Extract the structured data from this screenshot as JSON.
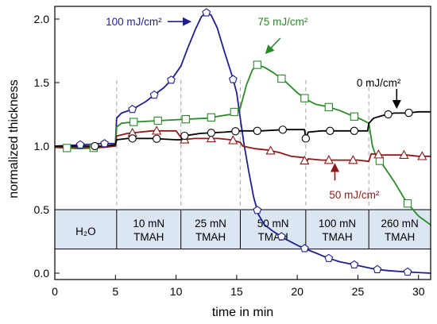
{
  "chart_data": {
    "type": "line",
    "xlabel": "time in min",
    "ylabel": "normalized thickness",
    "xlim": [
      0,
      31
    ],
    "ylim": [
      -0.05,
      2.1
    ],
    "x_ticks": [
      0,
      5,
      10,
      15,
      20,
      25,
      30
    ],
    "y_ticks": [
      0.0,
      0.5,
      1.0,
      1.5,
      2.0
    ],
    "y_tick_labels": [
      "0.0",
      "0.5",
      "1.0",
      "1.5",
      "2.0"
    ],
    "phase_band": {
      "y_bottom": 0.19,
      "y_top": 0.5,
      "color": "#dce6f2"
    },
    "phases": [
      {
        "label": "H₂O",
        "label2": "",
        "start": 0,
        "end": 5.1
      },
      {
        "label": "10 mN",
        "label2": "TMAH",
        "start": 5.1,
        "end": 10.4
      },
      {
        "label": "25 mN",
        "label2": "TMAH",
        "start": 10.4,
        "end": 15.3
      },
      {
        "label": "50 mN",
        "label2": "TMAH",
        "start": 15.3,
        "end": 20.7
      },
      {
        "label": "100 mN",
        "label2": "TMAH",
        "start": 20.7,
        "end": 25.9
      },
      {
        "label": "260 mN",
        "label2": "TMAH",
        "start": 25.9,
        "end": 31
      }
    ],
    "series": [
      {
        "name": "100 mJ/cm²",
        "color": "#1f1f8f",
        "marker": "pentagon",
        "points": [
          [
            0,
            1.0
          ],
          [
            2,
            1.01
          ],
          [
            4,
            1.02
          ],
          [
            5.0,
            1.02
          ],
          [
            5.1,
            1.22
          ],
          [
            5.5,
            1.26
          ],
          [
            6.4,
            1.29
          ],
          [
            7.5,
            1.35
          ],
          [
            8.3,
            1.41
          ],
          [
            9.0,
            1.46
          ],
          [
            9.6,
            1.52
          ],
          [
            10.4,
            1.63
          ],
          [
            11.0,
            1.78
          ],
          [
            11.6,
            1.92
          ],
          [
            12.1,
            2.02
          ],
          [
            12.5,
            2.05
          ],
          [
            12.9,
            2.03
          ],
          [
            13.4,
            1.93
          ],
          [
            14.0,
            1.74
          ],
          [
            14.6,
            1.56
          ],
          [
            15.0,
            1.42
          ],
          [
            15.3,
            1.22
          ],
          [
            15.6,
            1.02
          ],
          [
            16.0,
            0.8
          ],
          [
            16.4,
            0.6
          ],
          [
            16.8,
            0.46
          ],
          [
            17.3,
            0.38
          ],
          [
            18.0,
            0.33
          ],
          [
            19.0,
            0.27
          ],
          [
            20.0,
            0.22
          ],
          [
            20.7,
            0.19
          ],
          [
            21.5,
            0.16
          ],
          [
            22.5,
            0.12
          ],
          [
            23.5,
            0.09
          ],
          [
            24.5,
            0.07
          ],
          [
            25.5,
            0.05
          ],
          [
            26.5,
            0.03
          ],
          [
            27.5,
            0.02
          ],
          [
            29,
            0.01
          ],
          [
            31,
            0.0
          ]
        ],
        "marker_x": [
          2.1,
          4.1,
          6.4,
          8.2,
          9.6,
          12.5,
          14.7,
          16.7,
          18.7,
          20.6,
          22.6,
          24.7,
          26.6,
          29.1
        ]
      },
      {
        "name": "75 mJ/cm²",
        "color": "#2a8a2a",
        "marker": "square",
        "points": [
          [
            0,
            0.99
          ],
          [
            2,
            0.98
          ],
          [
            4,
            0.99
          ],
          [
            5.0,
            1.01
          ],
          [
            5.1,
            1.15
          ],
          [
            5.5,
            1.18
          ],
          [
            6.5,
            1.19
          ],
          [
            8.5,
            1.2
          ],
          [
            10.5,
            1.21
          ],
          [
            12.5,
            1.22
          ],
          [
            14.5,
            1.25
          ],
          [
            15.3,
            1.3
          ],
          [
            15.8,
            1.48
          ],
          [
            16.3,
            1.6
          ],
          [
            16.7,
            1.64
          ],
          [
            17.3,
            1.62
          ],
          [
            18.0,
            1.58
          ],
          [
            19.0,
            1.51
          ],
          [
            20.0,
            1.42
          ],
          [
            20.7,
            1.37
          ],
          [
            21.5,
            1.33
          ],
          [
            22.5,
            1.31
          ],
          [
            23.5,
            1.28
          ],
          [
            24.5,
            1.24
          ],
          [
            25.3,
            1.21
          ],
          [
            25.9,
            1.18
          ],
          [
            26.2,
            1.0
          ],
          [
            26.5,
            0.92
          ],
          [
            27,
            0.86
          ],
          [
            28,
            0.72
          ],
          [
            29,
            0.56
          ],
          [
            30,
            0.45
          ],
          [
            31,
            0.38
          ]
        ],
        "marker_x": [
          1.0,
          3.2,
          6.5,
          8.5,
          10.8,
          12.9,
          14.8,
          16.7,
          18.7,
          20.6,
          22.6,
          24.7,
          26.8,
          29.1
        ]
      },
      {
        "name": "50 mJ/cm²",
        "color": "#8b1a1a",
        "marker": "triangle",
        "points": [
          [
            0,
            0.99
          ],
          [
            2,
            0.99
          ],
          [
            4,
            0.99
          ],
          [
            5.0,
            1.0
          ],
          [
            5.1,
            1.08
          ],
          [
            6,
            1.1
          ],
          [
            7,
            1.11
          ],
          [
            8,
            1.12
          ],
          [
            9,
            1.12
          ],
          [
            10,
            1.12
          ],
          [
            10.4,
            1.07
          ],
          [
            10.6,
            1.05
          ],
          [
            11.5,
            1.06
          ],
          [
            12.5,
            1.06
          ],
          [
            13.5,
            1.06
          ],
          [
            14.5,
            1.05
          ],
          [
            15.3,
            1.03
          ],
          [
            15.5,
            1.0
          ],
          [
            16.5,
            0.98
          ],
          [
            17.5,
            0.97
          ],
          [
            18.5,
            0.95
          ],
          [
            19.5,
            0.92
          ],
          [
            20.5,
            0.91
          ],
          [
            20.7,
            0.86
          ],
          [
            20.9,
            0.9
          ],
          [
            22,
            0.89
          ],
          [
            23.5,
            0.89
          ],
          [
            25,
            0.89
          ],
          [
            25.9,
            0.88
          ],
          [
            26.1,
            0.94
          ],
          [
            27,
            0.93
          ],
          [
            28,
            0.93
          ],
          [
            29,
            0.93
          ],
          [
            30,
            0.92
          ],
          [
            31,
            0.92
          ]
        ],
        "marker_x": [
          6.4,
          8.4,
          10.7,
          12.9,
          14.7,
          17.8,
          20.6,
          22.6,
          24.6,
          26.7,
          28.8,
          30.3
        ]
      },
      {
        "name": "0 mJ/cm²",
        "color": "#000000",
        "marker": "circle",
        "points": [
          [
            0,
            1.0
          ],
          [
            2,
            1.0
          ],
          [
            4,
            1.0
          ],
          [
            5.0,
            1.01
          ],
          [
            5.1,
            1.05
          ],
          [
            6,
            1.06
          ],
          [
            8,
            1.06
          ],
          [
            10,
            1.05
          ],
          [
            10.4,
            1.05
          ],
          [
            10.6,
            1.08
          ],
          [
            12,
            1.1
          ],
          [
            14,
            1.11
          ],
          [
            15.3,
            1.12
          ],
          [
            15.5,
            1.12
          ],
          [
            17,
            1.12
          ],
          [
            19,
            1.13
          ],
          [
            20.6,
            1.13
          ],
          [
            20.7,
            1.06
          ],
          [
            20.9,
            1.11
          ],
          [
            22,
            1.12
          ],
          [
            24,
            1.12
          ],
          [
            25.8,
            1.12
          ],
          [
            25.9,
            1.18
          ],
          [
            26.3,
            1.22
          ],
          [
            27,
            1.24
          ],
          [
            28,
            1.26
          ],
          [
            29,
            1.26
          ],
          [
            30,
            1.27
          ],
          [
            31,
            1.27
          ]
        ],
        "marker_x": [
          3.3,
          6.4,
          8.4,
          10.7,
          12.9,
          14.9,
          16.7,
          18.8,
          20.7,
          22.7,
          24.7,
          27.5,
          29.2
        ]
      }
    ],
    "annotations": [
      {
        "text": "100 mJ/cm²",
        "color": "#1f1f8f",
        "x": 4.2,
        "y": 1.98,
        "arrow_from": [
          9.3,
          1.98
        ],
        "arrow_to": [
          11.2,
          1.98
        ]
      },
      {
        "text": "75 mJ/cm²",
        "color": "#2a8a2a",
        "x": 18.8,
        "y": 1.98,
        "arrow_from": [
          18.6,
          1.85
        ],
        "arrow_to": [
          17.4,
          1.73
        ]
      },
      {
        "text": "0 mJ/cm²",
        "color": "#000000",
        "x": 27.5,
        "y": 1.5,
        "arrow_from": [
          28.2,
          1.45
        ],
        "arrow_to": [
          28.2,
          1.3
        ]
      },
      {
        "text": "50 mJ/cm²",
        "color": "#8b1a1a",
        "x": 24.7,
        "y": 0.62,
        "arrow_from": [
          23.1,
          0.73
        ],
        "arrow_to": [
          23.1,
          0.86
        ]
      }
    ]
  }
}
